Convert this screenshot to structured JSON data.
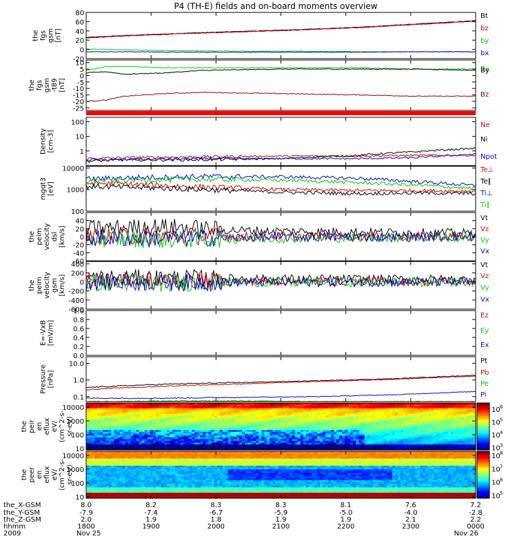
{
  "title": "P4 (TH-E) fields and on-board moments overview",
  "colors": {
    "black": "#000000",
    "red": "#cc0000",
    "green": "#00cc00",
    "blue": "#0000cc",
    "darkred": "#8b0000"
  },
  "chart_data": [
    {
      "type": "line",
      "id": "fgs-gsm",
      "ylabel_lines": [
        "the",
        "fgs",
        "gsm",
        "[nT]"
      ],
      "ylim": [
        -20,
        80
      ],
      "yticks": [
        -20,
        0,
        20,
        40,
        60,
        80
      ],
      "series": [
        {
          "name": "Bt",
          "color": "#000000",
          "x": [
            0,
            0.1,
            0.25,
            0.4,
            0.55,
            0.7,
            0.85,
            1.0
          ],
          "y": [
            26,
            30,
            35,
            39,
            43,
            48,
            55,
            62
          ]
        },
        {
          "name": "bz",
          "color": "#cc0000",
          "x": [
            0,
            0.1,
            0.25,
            0.4,
            0.55,
            0.7,
            0.85,
            1.0
          ],
          "y": [
            25,
            29,
            34,
            38,
            42,
            47,
            54,
            61
          ]
        },
        {
          "name": "by",
          "color": "#00cc00",
          "x": [
            0,
            0.1,
            0.25,
            0.4,
            0.55,
            0.7,
            0.85,
            1.0
          ],
          "y": [
            1,
            -1,
            -3,
            -4,
            -4,
            -5,
            -5,
            -5
          ]
        },
        {
          "name": "bx",
          "color": "#0000cc",
          "x": [
            0,
            0.1,
            0.25,
            0.4,
            0.55,
            0.7,
            0.85,
            1.0
          ],
          "y": [
            -5,
            -5,
            -6,
            -6,
            -6,
            -6,
            -5,
            -5
          ]
        }
      ]
    },
    {
      "type": "line",
      "id": "fgs-gsm-t89",
      "ylabel_lines": [
        "the",
        "fgs",
        "gsm",
        "-t89",
        "[nT]"
      ],
      "ylim": [
        -27,
        12
      ],
      "yticks": [
        -25,
        -20,
        -15,
        -10,
        -5,
        0,
        5,
        10
      ],
      "series": [
        {
          "name": "Bx",
          "color": "#00cc00",
          "x": [
            0,
            0.05,
            0.1,
            0.2,
            0.3,
            0.5,
            0.7,
            0.85,
            1.0
          ],
          "y": [
            4,
            7,
            7,
            6,
            6,
            6,
            6,
            5,
            5
          ]
        },
        {
          "name": "By",
          "color": "#000000",
          "x": [
            0,
            0.05,
            0.1,
            0.2,
            0.3,
            0.5,
            0.7,
            0.85,
            1.0
          ],
          "y": [
            2,
            3,
            1,
            2,
            4,
            5,
            5,
            5,
            4
          ]
        },
        {
          "name": "Bz",
          "color": "#8b0000",
          "x": [
            0,
            0.05,
            0.1,
            0.2,
            0.3,
            0.5,
            0.7,
            0.85,
            1.0
          ],
          "y": [
            -20,
            -19,
            -16,
            -14,
            -13,
            -14,
            -15,
            -16,
            -16
          ]
        }
      ]
    },
    {
      "type": "line",
      "id": "density",
      "scale": "log",
      "ylabel_lines": [
        "Density",
        "[cm-3]"
      ],
      "ylim": [
        0.1,
        200
      ],
      "yticks": [
        1,
        10,
        100
      ],
      "yticklabels": [
        "1",
        "10",
        "100"
      ],
      "series": [
        {
          "name": "Ne",
          "color": "#cc0000",
          "x": [
            0,
            0.1,
            0.3,
            0.5,
            0.7,
            0.85,
            1.0
          ],
          "y": [
            0.3,
            0.35,
            0.4,
            0.45,
            0.45,
            0.5,
            0.5
          ]
        },
        {
          "name": "Ni",
          "color": "#000000",
          "x": [
            0,
            0.1,
            0.3,
            0.5,
            0.7,
            0.85,
            1.0
          ],
          "y": [
            0.2,
            0.25,
            0.25,
            0.3,
            0.5,
            0.9,
            1.5
          ]
        },
        {
          "name": "Npot",
          "color": "#0000cc",
          "x": [
            0,
            0.1,
            0.3,
            0.5,
            0.7,
            0.85,
            1.0
          ],
          "y": [
            0.25,
            0.25,
            0.3,
            0.3,
            0.3,
            0.35,
            0.6
          ]
        }
      ]
    },
    {
      "type": "line",
      "id": "temperature",
      "scale": "log",
      "ylabel_lines": [
        "mgqt3",
        "[eV]"
      ],
      "ylim": [
        100,
        12000
      ],
      "yticks": [
        100,
        1000,
        10000
      ],
      "yticklabels": [
        "100",
        "1000",
        "10000"
      ],
      "series": [
        {
          "name": "Te⊥",
          "color": "#cc0000",
          "x": [
            0,
            0.1,
            0.3,
            0.5,
            0.7,
            0.85,
            1.0
          ],
          "y": [
            2000,
            1800,
            1300,
            1000,
            900,
            900,
            850
          ]
        },
        {
          "name": "Te∥",
          "color": "#000000",
          "x": [
            0,
            0.1,
            0.3,
            0.5,
            0.7,
            0.85,
            1.0
          ],
          "y": [
            1400,
            1300,
            1000,
            750,
            650,
            700,
            650
          ]
        },
        {
          "name": "Ti⊥",
          "color": "#0000cc",
          "x": [
            0,
            0.1,
            0.3,
            0.5,
            0.7,
            0.85,
            1.0
          ],
          "y": [
            3000,
            3500,
            4000,
            3900,
            3300,
            2300,
            1500
          ]
        },
        {
          "name": "Ti∥",
          "color": "#00cc00",
          "x": [
            0,
            0.1,
            0.3,
            0.5,
            0.7,
            0.85,
            1.0
          ],
          "y": [
            2500,
            2800,
            3000,
            2700,
            2100,
            1600,
            1100
          ]
        }
      ]
    },
    {
      "type": "line",
      "id": "peim-velocity-dsl",
      "ylabel_lines": [
        "the",
        "peim",
        "velocity",
        "dsl",
        "[km/s]"
      ],
      "ylim": [
        -60,
        60
      ],
      "yticks": [
        -60,
        -40,
        -20,
        0,
        20,
        40
      ],
      "series": [
        {
          "name": "Vt",
          "color": "#000000",
          "x": [
            0,
            0.2,
            0.4,
            0.6,
            0.8,
            1.0
          ],
          "y": [
            20,
            25,
            15,
            12,
            10,
            8
          ]
        },
        {
          "name": "Vz",
          "color": "#cc0000",
          "x": [
            0,
            0.2,
            0.4,
            0.6,
            0.8,
            1.0
          ],
          "y": [
            0,
            2,
            0,
            1,
            0,
            0
          ]
        },
        {
          "name": "Vy",
          "color": "#00cc00",
          "x": [
            0,
            0.2,
            0.4,
            0.6,
            0.8,
            1.0
          ],
          "y": [
            -5,
            -8,
            -5,
            -3,
            -2,
            -2
          ]
        },
        {
          "name": "Vx",
          "color": "#0000cc",
          "x": [
            0,
            0.2,
            0.4,
            0.6,
            0.8,
            1.0
          ],
          "y": [
            -3,
            -5,
            -2,
            -1,
            -1,
            0
          ]
        }
      ]
    },
    {
      "type": "line",
      "id": "peim-velocity-gsm",
      "ylabel_lines": [
        "the",
        "peim",
        "velocity",
        "gsm",
        "[km/s]"
      ],
      "ylim": [
        -600,
        450
      ],
      "yticks": [
        -600,
        -400,
        -200,
        0,
        200,
        400
      ],
      "series": [
        {
          "name": "Vt",
          "color": "#000000",
          "x": [
            0,
            0.2,
            0.4,
            0.6,
            0.8,
            1.0
          ],
          "y": [
            80,
            90,
            70,
            60,
            60,
            50
          ]
        },
        {
          "name": "Vz",
          "color": "#cc0000",
          "x": [
            0,
            0.2,
            0.4,
            0.6,
            0.8,
            1.0
          ],
          "y": [
            30,
            20,
            10,
            10,
            5,
            5
          ]
        },
        {
          "name": "Vy",
          "color": "#00cc00",
          "x": [
            0,
            0.2,
            0.4,
            0.6,
            0.8,
            1.0
          ],
          "y": [
            -20,
            -30,
            -10,
            -10,
            -5,
            -5
          ]
        },
        {
          "name": "Vx",
          "color": "#0000cc",
          "x": [
            0,
            0.2,
            0.4,
            0.6,
            0.8,
            1.0
          ],
          "y": [
            -10,
            -20,
            -10,
            -5,
            -5,
            -5
          ]
        }
      ]
    },
    {
      "type": "line",
      "id": "efield",
      "ylabel_lines": [
        "E=-VxB",
        "[mV/m]"
      ],
      "ylim": [
        0,
        1.0
      ],
      "yticks": [
        0.0,
        0.2,
        0.4,
        0.6,
        0.8,
        1.0
      ],
      "yticklabels": [
        "0.0",
        "0.2",
        "0.4",
        "0.6",
        "0.8",
        "1.0"
      ],
      "series": [
        {
          "name": "Ez",
          "color": "#cc0000",
          "x": [],
          "y": []
        },
        {
          "name": "Ey",
          "color": "#00cc00",
          "x": [],
          "y": []
        },
        {
          "name": "Ex",
          "color": "#0000cc",
          "x": [],
          "y": []
        }
      ]
    },
    {
      "type": "line",
      "id": "pressure",
      "scale": "log",
      "ylabel_lines": [
        "Pressure",
        "[nPa]"
      ],
      "ylim": [
        0.05,
        25
      ],
      "yticks": [
        0.1,
        1.0,
        10.0
      ],
      "yticklabels": [
        "0.1",
        "1.0",
        "10.0"
      ],
      "series": [
        {
          "name": "Pt",
          "color": "#000000",
          "x": [
            0,
            0.2,
            0.4,
            0.6,
            0.8,
            1.0
          ],
          "y": [
            0.35,
            0.55,
            0.7,
            0.9,
            1.2,
            1.9
          ]
        },
        {
          "name": "Pb",
          "color": "#cc0000",
          "x": [
            0,
            0.2,
            0.4,
            0.6,
            0.8,
            1.0
          ],
          "y": [
            0.26,
            0.42,
            0.58,
            0.8,
            1.1,
            1.7
          ]
        },
        {
          "name": "Pe",
          "color": "#00cc00",
          "x": [
            0,
            0.2,
            0.4,
            0.6,
            0.8,
            1.0
          ],
          "y": [
            0.05,
            0.055,
            0.055,
            0.05,
            0.05,
            0.05
          ]
        },
        {
          "name": "Pi",
          "color": "#0000cc",
          "x": [
            0,
            0.2,
            0.4,
            0.6,
            0.8,
            1.0
          ],
          "y": [
            0.08,
            0.08,
            0.09,
            0.1,
            0.13,
            0.2
          ]
        }
      ]
    },
    {
      "type": "heatmap",
      "id": "peir-en-eflux",
      "ylabel_lines": [
        "the",
        "peir",
        "en",
        "eflux",
        "eV/",
        "(cm^2-s-",
        "sr-eV)"
      ],
      "ylim": [
        8,
        20000
      ],
      "scale": "log",
      "yticks": [
        10,
        100,
        1000,
        10000
      ],
      "yticklabels": [
        "10",
        "100",
        "1000",
        "10000"
      ],
      "colorbar": {
        "ticks": [
          3,
          4,
          5,
          6
        ],
        "labels": [
          "10",
          "10",
          "10",
          "10"
        ],
        "exps": [
          "3",
          "4",
          "5",
          "6"
        ],
        "min": 2.8,
        "max": 6.5
      }
    },
    {
      "type": "heatmap",
      "id": "peer-en-eflux",
      "ylabel_lines": [
        "the",
        "peer",
        "en",
        "eflux",
        "eV/",
        "(cm^2-s-",
        "sr-eV)"
      ],
      "ylim": [
        8,
        20000
      ],
      "scale": "log",
      "yticks": [
        10,
        100,
        1000,
        10000
      ],
      "yticklabels": [
        "10",
        "100",
        "1000",
        "10000"
      ],
      "colorbar": {
        "ticks": [
          5,
          6,
          7,
          8
        ],
        "labels": [
          "10",
          "10",
          "10",
          "10"
        ],
        "exps": [
          "5",
          "6",
          "7",
          "8"
        ],
        "min": 4.8,
        "max": 8.3
      }
    }
  ],
  "xaxis": {
    "row_labels": [
      "the_X-GSM",
      "the_Y-GSM",
      "the_Z-GSM",
      "hhmm",
      "2009"
    ],
    "columns": [
      {
        "values": [
          "8.0",
          "-7.9",
          "2.0",
          "1800",
          "Nov 25"
        ]
      },
      {
        "values": [
          "8.2",
          "-7.4",
          "1.9",
          "1900",
          ""
        ]
      },
      {
        "values": [
          "8.3",
          "-6.7",
          "1.8",
          "2000",
          ""
        ]
      },
      {
        "values": [
          "8.3",
          "-5.9",
          "1.9",
          "2100",
          ""
        ]
      },
      {
        "values": [
          "8.1",
          "-5.0",
          "1.9",
          "2200",
          ""
        ]
      },
      {
        "values": [
          "7.6",
          "-4.0",
          "2.1",
          "2300",
          ""
        ]
      },
      {
        "values": [
          "7.2",
          "-2.8",
          "2.2",
          "0000",
          "Nov 26"
        ]
      }
    ]
  }
}
